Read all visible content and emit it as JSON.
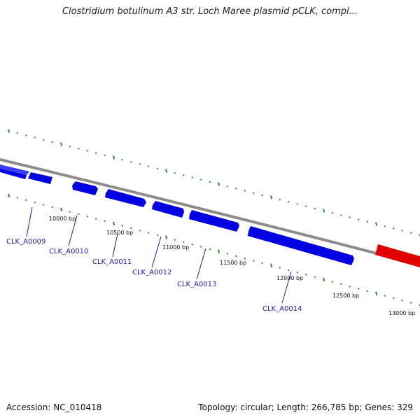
{
  "title": "Clostridium botulinum A3 str. Loch Maree plasmid pCLK, compl...",
  "footer": {
    "accession": "Accession: NC_010418",
    "summary": "Topology: circular; Length: 266,785 bp; Genes: 329"
  },
  "colors": {
    "backbone": "#8c8c8c",
    "gene_forward": "#0000e6",
    "gene_reverse": "#e60000",
    "tick": "#2e8b2e",
    "label": "#1a1aa8"
  },
  "position_labels": [
    "10000 bp",
    "10500 bp",
    "11000 bp",
    "11500 bp",
    "12000 bp",
    "12500 bp",
    "13000 bp"
  ],
  "gene_labels": [
    "CLK_A0009",
    "CLK_A0010",
    "CLK_A0011",
    "CLK_A0012",
    "CLK_A0013",
    "CLK_A0014"
  ]
}
